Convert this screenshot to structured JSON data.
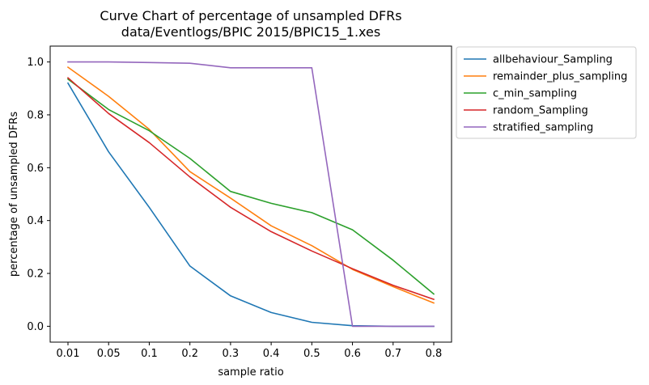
{
  "chart_data": {
    "type": "line",
    "title": "Curve Chart of percentage of unsampled DFRs",
    "subtitle": "data/Eventlogs/BPIC 2015/BPIC15_1.xes",
    "xlabel": "sample ratio",
    "ylabel": "percentage of unsampled DFRs",
    "x": [
      "0.01",
      "0.05",
      "0.1",
      "0.2",
      "0.3",
      "0.4",
      "0.5",
      "0.6",
      "0.7",
      "0.8"
    ],
    "ylim": [
      -0.06,
      1.06
    ],
    "yticks": [
      "0.0",
      "0.2",
      "0.4",
      "0.6",
      "0.8",
      "1.0"
    ],
    "grid": false,
    "legend_position": "outside-right",
    "series": [
      {
        "name": "allbehaviour_Sampling",
        "color": "#1f77b4",
        "values": [
          0.92,
          0.66,
          0.45,
          0.228,
          0.115,
          0.052,
          0.015,
          0.002,
          0.0,
          0.0
        ]
      },
      {
        "name": "remainder_plus_sampling",
        "color": "#ff7f0e",
        "values": [
          0.98,
          0.87,
          0.745,
          0.585,
          0.485,
          0.38,
          0.305,
          0.215,
          0.15,
          0.088
        ]
      },
      {
        "name": "c_min_sampling",
        "color": "#2ca02c",
        "values": [
          0.935,
          0.82,
          0.74,
          0.635,
          0.51,
          0.465,
          0.43,
          0.365,
          0.25,
          0.122
        ]
      },
      {
        "name": "random_Sampling",
        "color": "#d62728",
        "values": [
          0.94,
          0.805,
          0.695,
          0.565,
          0.45,
          0.358,
          0.285,
          0.218,
          0.155,
          0.102
        ]
      },
      {
        "name": "stratified_sampling",
        "color": "#9467bd",
        "values": [
          1.0,
          1.0,
          0.998,
          0.995,
          0.978,
          0.978,
          0.978,
          0.0,
          0.0,
          0.0
        ]
      }
    ]
  }
}
